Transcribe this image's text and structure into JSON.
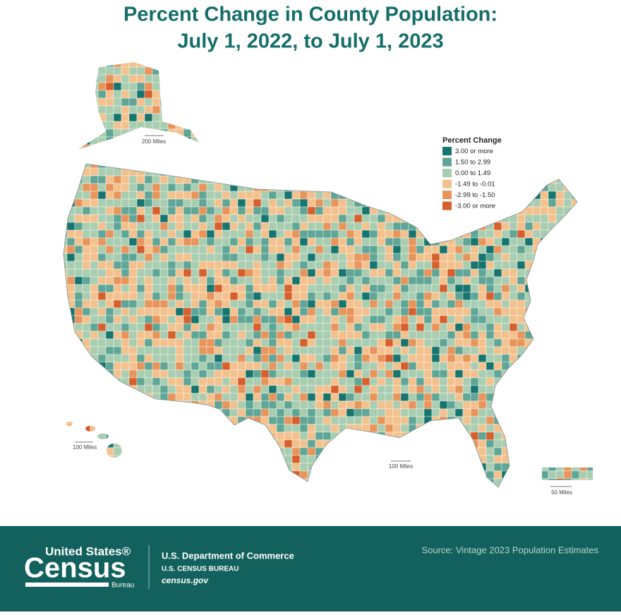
{
  "title": {
    "line1": "Percent Change in County Population:",
    "line2": "July 1, 2022, to July 1, 2023"
  },
  "legend": {
    "title": "Percent Change",
    "items": [
      {
        "label": "3.00 or more",
        "color": "#16756f"
      },
      {
        "label": "1.50 to 2.99",
        "color": "#5fa697"
      },
      {
        "label": "0.00 to 1.49",
        "color": "#a8cdb0"
      },
      {
        "label": "-1.49 to -0.01",
        "color": "#f3c18d"
      },
      {
        "label": "-2.99 to -1.50",
        "color": "#e8955c"
      },
      {
        "label": "-3.00 or more",
        "color": "#d65f2c"
      }
    ]
  },
  "scales": {
    "alaska": "200 Miles",
    "hawaii": "100 Miles",
    "mainland": "100 Miles",
    "puerto_rico": "50 Miles"
  },
  "footer": {
    "logo_top": "United States®",
    "logo_main": "Census",
    "logo_bottom": "Bureau",
    "department": "U.S. Department of Commerce",
    "bureau": "U.S. CENSUS BUREAU",
    "url": "census.gov",
    "source": "Source: Vintage 2023 Population Estimates"
  }
}
